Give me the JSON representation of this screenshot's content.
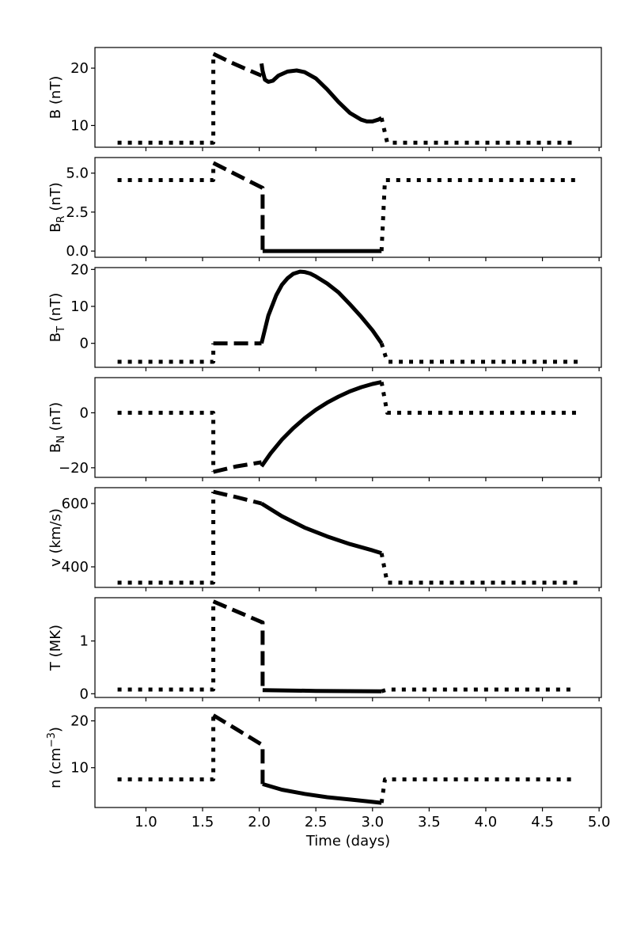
{
  "chart_data": {
    "type": "line",
    "xlabel": "Time (days)",
    "xlim": [
      0.55,
      5.02
    ],
    "xticks": [
      {
        "v": 1.0,
        "label": "1.0"
      },
      {
        "v": 1.5,
        "label": "1.5"
      },
      {
        "v": 2.0,
        "label": "2.0"
      },
      {
        "v": 2.5,
        "label": "2.5"
      },
      {
        "v": 3.0,
        "label": "3.0"
      },
      {
        "v": 3.5,
        "label": "3.5"
      },
      {
        "v": 4.0,
        "label": "4.0"
      },
      {
        "v": 4.5,
        "label": "4.5"
      },
      {
        "v": 5.0,
        "label": "5.0"
      }
    ],
    "styles": {
      "dotted": "dotted",
      "dashed": "dashed",
      "solid": "solid"
    },
    "panels": [
      {
        "id": "B",
        "ylabel": {
          "main": "B",
          "sub": "",
          "sup": "",
          "tail": " (nT)"
        },
        "ylim": [
          6.2,
          23.6
        ],
        "yticks": [
          {
            "v": 10,
            "label": "10"
          },
          {
            "v": 20,
            "label": "20"
          }
        ],
        "series": [
          {
            "style": "dotted",
            "x": [
              0.75,
              1.595,
              1.595
            ],
            "y": [
              7.0,
              7.0,
              22.5
            ]
          },
          {
            "style": "dashed",
            "x": [
              1.595,
              1.75,
              1.9,
              2.02
            ],
            "y": [
              22.5,
              21.0,
              19.7,
              18.7
            ]
          },
          {
            "style": "solid",
            "x": [
              2.02,
              2.03,
              2.05,
              2.08,
              2.12,
              2.17,
              2.25,
              2.33,
              2.4,
              2.5,
              2.6,
              2.7,
              2.8,
              2.9,
              2.95,
              3.0,
              3.05,
              3.08
            ],
            "y": [
              20.8,
              19.5,
              18.0,
              17.6,
              17.8,
              18.7,
              19.4,
              19.6,
              19.3,
              18.2,
              16.3,
              14.1,
              12.2,
              11.0,
              10.7,
              10.7,
              11.0,
              11.3
            ]
          },
          {
            "style": "dotted",
            "x": [
              3.08,
              3.13,
              4.8
            ],
            "y": [
              11.3,
              7.0,
              7.0
            ]
          }
        ]
      },
      {
        "id": "BR",
        "ylabel": {
          "main": "B",
          "sub": "R",
          "sup": "",
          "tail": " (nT)"
        },
        "ylim": [
          -0.4,
          6.0
        ],
        "yticks": [
          {
            "v": 0.0,
            "label": "0.0"
          },
          {
            "v": 2.5,
            "label": "2.5"
          },
          {
            "v": 5.0,
            "label": "5.0"
          }
        ],
        "series": [
          {
            "style": "dotted",
            "x": [
              0.75,
              1.595,
              1.595
            ],
            "y": [
              4.55,
              4.55,
              5.65
            ]
          },
          {
            "style": "dashed",
            "x": [
              1.595,
              2.03,
              2.03,
              2.03
            ],
            "y": [
              5.65,
              4.05,
              4.05,
              0.0
            ]
          },
          {
            "style": "solid",
            "x": [
              2.03,
              3.08
            ],
            "y": [
              0.0,
              0.0
            ]
          },
          {
            "style": "dotted",
            "x": [
              3.08,
              3.11,
              4.8
            ],
            "y": [
              0.0,
              4.55,
              4.55
            ]
          }
        ]
      },
      {
        "id": "BT",
        "ylabel": {
          "main": "B",
          "sub": "T",
          "sup": "",
          "tail": " (nT)"
        },
        "ylim": [
          -6.5,
          20.5
        ],
        "yticks": [
          {
            "v": 0,
            "label": "0"
          },
          {
            "v": 10,
            "label": "10"
          },
          {
            "v": 20,
            "label": "20"
          }
        ],
        "series": [
          {
            "style": "dotted",
            "x": [
              0.75,
              1.595,
              1.595
            ],
            "y": [
              -5.0,
              -5.0,
              0.0
            ]
          },
          {
            "style": "dashed",
            "x": [
              1.595,
              2.02
            ],
            "y": [
              0.0,
              0.0
            ]
          },
          {
            "style": "solid",
            "x": [
              2.02,
              2.08,
              2.15,
              2.2,
              2.25,
              2.3,
              2.36,
              2.4,
              2.45,
              2.5,
              2.6,
              2.7,
              2.8,
              2.9,
              3.0,
              3.08
            ],
            "y": [
              0.0,
              7.5,
              13.0,
              15.8,
              17.6,
              18.8,
              19.4,
              19.3,
              18.9,
              18.1,
              16.2,
              13.8,
              10.6,
              7.2,
              3.5,
              0.0
            ]
          },
          {
            "style": "dotted",
            "x": [
              3.08,
              3.13,
              4.82
            ],
            "y": [
              0.0,
              -5.0,
              -5.0
            ]
          }
        ]
      },
      {
        "id": "BN",
        "ylabel": {
          "main": "B",
          "sub": "N",
          "sup": "",
          "tail": " (nT)"
        },
        "ylim": [
          -23.5,
          12.8
        ],
        "yticks": [
          {
            "v": -20,
            "label": "−20"
          },
          {
            "v": 0,
            "label": "0"
          }
        ],
        "series": [
          {
            "style": "dotted",
            "x": [
              0.75,
              1.595,
              1.595
            ],
            "y": [
              0.0,
              0.0,
              -21.5
            ]
          },
          {
            "style": "dashed",
            "x": [
              1.595,
              1.8,
              2.02
            ],
            "y": [
              -21.5,
              -19.5,
              -18.0
            ]
          },
          {
            "style": "solid",
            "x": [
              2.02,
              2.1,
              2.2,
              2.3,
              2.4,
              2.5,
              2.6,
              2.7,
              2.8,
              2.9,
              3.0,
              3.08
            ],
            "y": [
              -19.5,
              -14.8,
              -9.8,
              -5.6,
              -2.0,
              1.1,
              3.7,
              5.9,
              7.8,
              9.3,
              10.5,
              11.2
            ]
          },
          {
            "style": "dotted",
            "x": [
              3.08,
              3.13,
              4.82
            ],
            "y": [
              11.2,
              0.0,
              0.0
            ]
          }
        ]
      },
      {
        "id": "v",
        "ylabel": {
          "main": "v",
          "sub": "",
          "sup": "",
          "tail": " (km/s)"
        },
        "ylim": [
          335,
          650
        ],
        "yticks": [
          {
            "v": 400,
            "label": "400"
          },
          {
            "v": 600,
            "label": "600"
          }
        ],
        "series": [
          {
            "style": "dotted",
            "x": [
              0.75,
              1.595,
              1.595
            ],
            "y": [
              350,
              350,
              637
            ]
          },
          {
            "style": "dashed",
            "x": [
              1.595,
              1.8,
              2.02
            ],
            "y": [
              637,
              620,
              600
            ]
          },
          {
            "style": "solid",
            "x": [
              2.02,
              2.2,
              2.4,
              2.6,
              2.8,
              3.0,
              3.08
            ],
            "y": [
              600,
              560,
              524,
              496,
              472,
              452,
              443
            ]
          },
          {
            "style": "dotted",
            "x": [
              3.08,
              3.13,
              4.82
            ],
            "y": [
              443,
              350,
              350
            ]
          }
        ]
      },
      {
        "id": "T",
        "ylabel": {
          "main": "T",
          "sub": "",
          "sup": "",
          "tail": " (MK)"
        },
        "ylim": [
          -0.07,
          1.82
        ],
        "yticks": [
          {
            "v": 0,
            "label": "0"
          },
          {
            "v": 1,
            "label": "1"
          }
        ],
        "series": [
          {
            "style": "dotted",
            "x": [
              0.75,
              1.595,
              1.595
            ],
            "y": [
              0.08,
              0.08,
              1.75
            ]
          },
          {
            "style": "dashed",
            "x": [
              1.595,
              2.03,
              2.03,
              2.03
            ],
            "y": [
              1.75,
              1.35,
              1.35,
              0.07
            ]
          },
          {
            "style": "solid",
            "x": [
              2.03,
              2.5,
              3.08
            ],
            "y": [
              0.07,
              0.055,
              0.045
            ]
          },
          {
            "style": "dotted",
            "x": [
              3.08,
              3.13,
              4.8
            ],
            "y": [
              0.045,
              0.08,
              0.08
            ]
          }
        ]
      },
      {
        "id": "n",
        "ylabel": {
          "main": "n",
          "sub": "",
          "sup": "−3",
          "tail": "",
          "prefix": " (cm",
          "suffix": ")"
        },
        "ylim": [
          1.5,
          22.8
        ],
        "yticks": [
          {
            "v": 10,
            "label": "10"
          },
          {
            "v": 20,
            "label": "20"
          }
        ],
        "series": [
          {
            "style": "dotted",
            "x": [
              0.75,
              1.595,
              1.595
            ],
            "y": [
              7.5,
              7.5,
              21.2
            ]
          },
          {
            "style": "dashed",
            "x": [
              1.595,
              1.8,
              2.03,
              2.03
            ],
            "y": [
              21.2,
              18.2,
              14.8,
              6.5
            ]
          },
          {
            "style": "solid",
            "x": [
              2.03,
              2.2,
              2.4,
              2.6,
              2.8,
              3.0,
              3.08
            ],
            "y": [
              6.5,
              5.3,
              4.4,
              3.7,
              3.2,
              2.7,
              2.5
            ]
          },
          {
            "style": "dotted",
            "x": [
              3.08,
              3.11,
              4.8
            ],
            "y": [
              2.5,
              7.5,
              7.5
            ]
          }
        ]
      }
    ]
  }
}
